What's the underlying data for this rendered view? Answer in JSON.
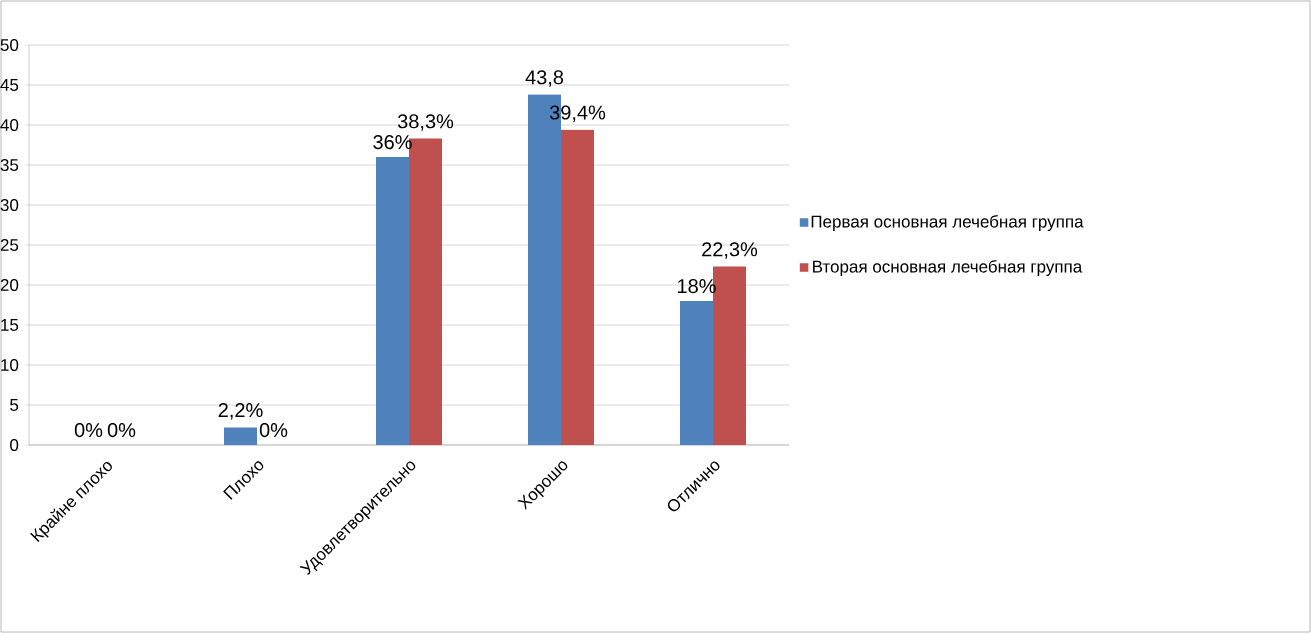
{
  "chart_data": {
    "type": "bar",
    "categories": [
      "Крайне плохо",
      "Плохо",
      "Удовлетворительно",
      "Хорошо",
      "Отлично"
    ],
    "series": [
      {
        "name": "Первая основная лечебная группа",
        "color": "#4f81bd",
        "values": [
          0,
          2.2,
          36,
          43.8,
          18
        ],
        "value_labels": [
          "0%",
          "2,2%",
          "36%",
          "43,8",
          "18%"
        ]
      },
      {
        "name": "Вторая основная лечебная группа",
        "color": "#c0504d",
        "values": [
          0,
          0,
          38.3,
          39.4,
          22.3
        ],
        "value_labels": [
          "0%",
          "0%",
          "38,3%",
          "39,4%",
          "22,3%"
        ]
      }
    ],
    "ylim": [
      0,
      50
    ],
    "yticks": [
      0,
      5,
      10,
      15,
      20,
      25,
      30,
      35,
      40,
      45,
      50
    ],
    "grid": "y",
    "legend": "right"
  }
}
